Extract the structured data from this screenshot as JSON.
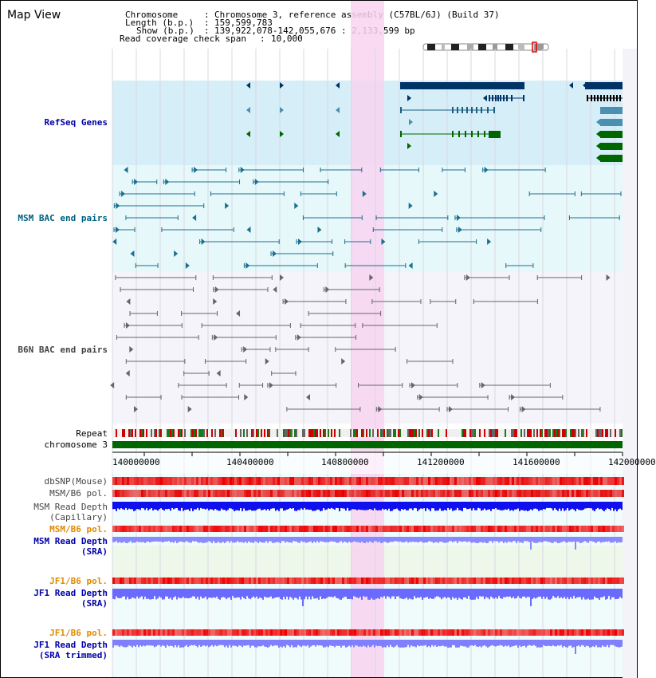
{
  "app": {
    "title": "Map View"
  },
  "header": {
    "chromosome_key": "Chromosome",
    "chromosome_value": "Chromosome 3, reference assembly (C57BL/6J) (Build 37)",
    "length_key": "Length (b.p.)",
    "length_value": "159,599,783",
    "show_key": "Show (b.p.)",
    "show_value": "139,922,078-142,055,676 : 2,133,599 bp",
    "coverage_key": "Read coverage check span",
    "coverage_value": "10,000",
    "sep": ":"
  },
  "tracks": {
    "refseq": "RefSeq Genes",
    "msm_bac": "MSM BAC end pairs",
    "b6n_bac": "B6N BAC end pairs",
    "repeat": "Repeat",
    "chromosome": "chromosome 3",
    "dbsnp": "dbSNP(Mouse)",
    "msm_b6_pol_1": "MSM/B6 pol.",
    "msm_depth_cap_1": "MSM Read Depth",
    "msm_depth_cap_2": "(Capillary)",
    "msm_b6_pol_2": "MSM/B6 pol.",
    "msm_depth_sra_1": "MSM Read Depth",
    "msm_depth_sra_2": "(SRA)",
    "jf1_b6_pol_1": "JF1/B6 pol.",
    "jf1_depth_sra_1": "JF1 Read Depth",
    "jf1_depth_sra_2": "(SRA)",
    "jf1_b6_pol_2": "JF1/B6 pol.",
    "jf1_depth_trim_1": "JF1 Read Depth",
    "jf1_depth_trim_2": "(SRA trimmed)"
  },
  "axis": {
    "ticks": [
      "140000000",
      "140400000",
      "140800000",
      "141200000",
      "141600000",
      "142000000"
    ]
  },
  "colors": {
    "refseq_bg": "#d6eef8",
    "msm_bac_bg": "#e6f8fa",
    "b6n_bg": "#f4f4fa",
    "highlight": "#f8d4f0",
    "label_blue": "#0000aa",
    "label_teal": "#006080",
    "label_gray": "#444444",
    "label_orange": "#e08a00",
    "gene_dark": "#003366",
    "gene_green": "#006600",
    "chromosome_green": "#006600",
    "depth_blue": "#1a1aff",
    "depth_light": "#8a8aff"
  }
}
